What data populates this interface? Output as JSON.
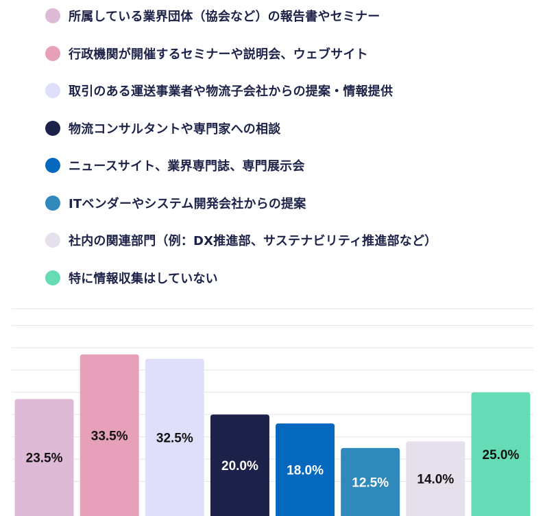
{
  "chart_data": {
    "type": "bar",
    "title": "",
    "xlabel": "",
    "ylabel": "",
    "ylim": [
      0,
      35
    ],
    "grid": true,
    "legend_position": "top",
    "categories": [
      "所属している業界団体（協会など）の報告書やセミナー",
      "行政機関が開催するセミナーや説明会、ウェブサイト",
      "取引のある運送事業者や物流子会社からの提案・情報提供",
      "物流コンサルタントや専門家への相談",
      "ニュースサイト、業界専門誌、専門展示会",
      "ITベンダーやシステム開発会社からの提案",
      "社内の関連部門（例：DX推進部、サステナビリティ推進部など）",
      "特に情報収集はしていない"
    ],
    "values": [
      23.5,
      33.5,
      32.5,
      20.0,
      18.0,
      12.5,
      14.0,
      25.0
    ],
    "value_labels": [
      "23.5%",
      "33.5%",
      "32.5%",
      "20.0%",
      "18.0%",
      "12.5%",
      "14.0%",
      "25.0%"
    ],
    "colors": [
      "#dfbad7",
      "#e6a0b9",
      "#dfdffb",
      "#1c2249",
      "#0468be",
      "#2f89bb",
      "#e6e0ec",
      "#65dcb6"
    ],
    "label_colors": [
      "#111111",
      "#111111",
      "#111111",
      "#ffffff",
      "#ffffff",
      "#ffffff",
      "#111111",
      "#111111"
    ]
  }
}
